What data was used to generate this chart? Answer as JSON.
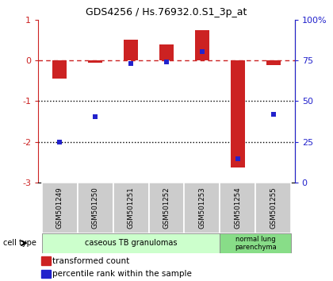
{
  "title": "GDS4256 / Hs.76932.0.S1_3p_at",
  "samples": [
    "GSM501249",
    "GSM501250",
    "GSM501251",
    "GSM501252",
    "GSM501253",
    "GSM501254",
    "GSM501255"
  ],
  "transformed_count": [
    -0.45,
    -0.05,
    0.5,
    0.4,
    0.75,
    -2.62,
    -0.12
  ],
  "percentile_rank_left": [
    -2.0,
    -1.38,
    -0.08,
    -0.04,
    0.22,
    -2.42,
    -1.32
  ],
  "ylim_left": [
    -3.0,
    1.0
  ],
  "yticks_left": [
    1,
    0,
    -1,
    -2,
    -3
  ],
  "ytick_labels_left": [
    "1",
    "0",
    "-1",
    "-2",
    "-3"
  ],
  "yticks_right_pos": [
    1.0,
    0.0,
    -1.0,
    -2.0,
    -3.0
  ],
  "ytick_labels_right": [
    "100%",
    "75",
    "50",
    "25",
    "0"
  ],
  "dotted_lines": [
    -1.0,
    -2.0
  ],
  "bar_color": "#cc2222",
  "dot_color": "#2222cc",
  "cell_type_label1": "caseous TB granulomas",
  "cell_type_color1": "#ccffcc",
  "cell_type_label2": "normal lung\nparenchyma",
  "cell_type_color2": "#88dd88",
  "legend_label1": "transformed count",
  "legend_label2": "percentile rank within the sample",
  "cell_type_label": "cell type",
  "background_color": "#ffffff",
  "tick_bg_color": "#cccccc",
  "bar_width": 0.4
}
